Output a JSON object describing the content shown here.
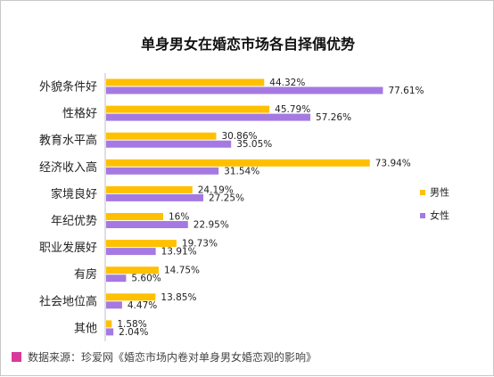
{
  "chart_data": {
    "type": "bar",
    "orientation": "horizontal",
    "title": "单身男女在婚恋市场各自择偶优势",
    "categories": [
      "外貌条件好",
      "性格好",
      "教育水平高",
      "经济收入高",
      "家境良好",
      "年纪优势",
      "职业发展好",
      "有房",
      "社会地位高",
      "其他"
    ],
    "series": [
      {
        "name": "男性",
        "color": "#ffc000",
        "values": [
          44.32,
          45.79,
          30.86,
          73.94,
          24.19,
          16,
          19.73,
          14.75,
          13.85,
          1.58
        ],
        "labels": [
          "44.32%",
          "45.79%",
          "30.86%",
          "73.94%",
          "24.19%",
          "16%",
          "19.73%",
          "14.75%",
          "13.85%",
          "1.58%"
        ]
      },
      {
        "name": "女性",
        "color": "#a47ae2",
        "values": [
          77.61,
          57.26,
          35.05,
          31.54,
          27.25,
          22.95,
          13.91,
          5.6,
          4.47,
          2.04
        ],
        "labels": [
          "77.61%",
          "57.26%",
          "35.05%",
          "31.54%",
          "27.25%",
          "22.95%",
          "13.91%",
          "5.60%",
          "4.47%",
          "2.04%"
        ]
      }
    ],
    "xlim": [
      0,
      100
    ],
    "grid": false,
    "legend_position": "right",
    "source": "数据来源：珍爱网《婚恋市场内卷对单身男女婚恋观的影响》",
    "source_marker_color": "#d9399b"
  }
}
